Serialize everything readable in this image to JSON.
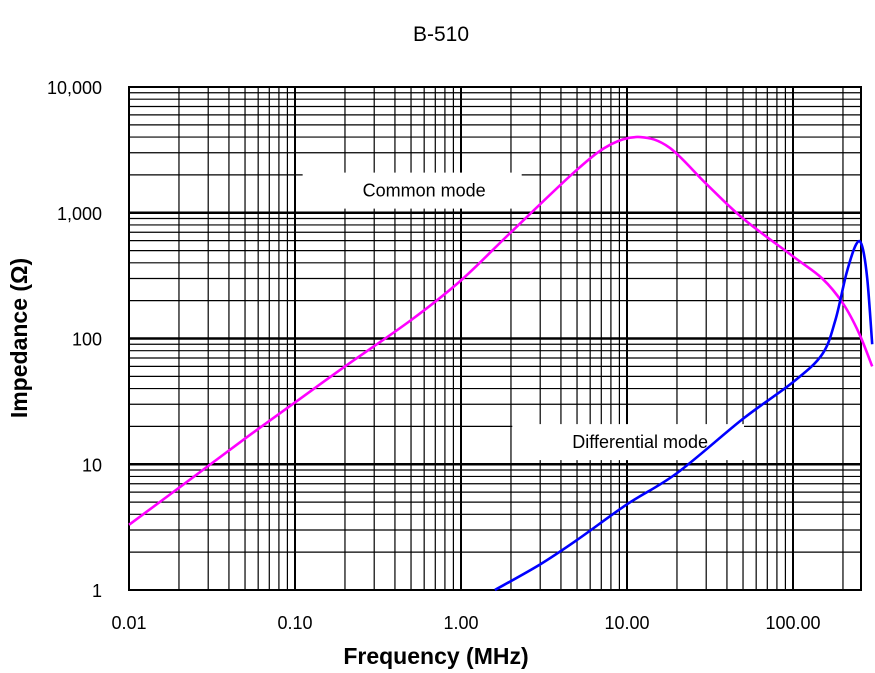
{
  "chart_data": {
    "type": "line",
    "title": "B-510",
    "xlabel": "Frequency (MHz)",
    "ylabel": "Impedance (Ω)",
    "x_scale": "log",
    "y_scale": "log",
    "xlim": [
      0.01,
      300
    ],
    "ylim": [
      1,
      10000
    ],
    "grid": true,
    "x_ticks": [
      0.01,
      0.1,
      1,
      10,
      100
    ],
    "x_tick_labels": [
      "0.01",
      "0.10",
      "1.00",
      "10.00",
      "100.00"
    ],
    "y_ticks": [
      1,
      10,
      100,
      1000,
      10000
    ],
    "y_tick_labels": [
      "1",
      "10",
      "100",
      "1,000",
      "10,000"
    ],
    "annotations": [
      {
        "text": "Common mode",
        "x": 0.6,
        "y": 1500
      },
      {
        "text": "Differential mode",
        "x": 12,
        "y": 15
      }
    ],
    "series": [
      {
        "label": "Common mode",
        "color": "#ff00ff",
        "x": [
          0.01,
          0.02,
          0.05,
          0.1,
          0.2,
          0.5,
          1,
          2,
          5,
          8,
          12,
          18,
          30,
          50,
          100,
          150,
          200,
          250,
          300
        ],
        "y": [
          3.3,
          6.5,
          16,
          31,
          60,
          140,
          290,
          700,
          2200,
          3500,
          4000,
          3300,
          1700,
          900,
          450,
          300,
          190,
          110,
          60
        ]
      },
      {
        "label": "Differential mode",
        "color": "#0000ff",
        "x": [
          1.6,
          3,
          5,
          10,
          20,
          50,
          100,
          150,
          180,
          210,
          240,
          260,
          280,
          300
        ],
        "y": [
          1,
          1.6,
          2.5,
          4.8,
          8.5,
          23,
          45,
          75,
          140,
          330,
          560,
          550,
          300,
          90
        ]
      }
    ]
  }
}
